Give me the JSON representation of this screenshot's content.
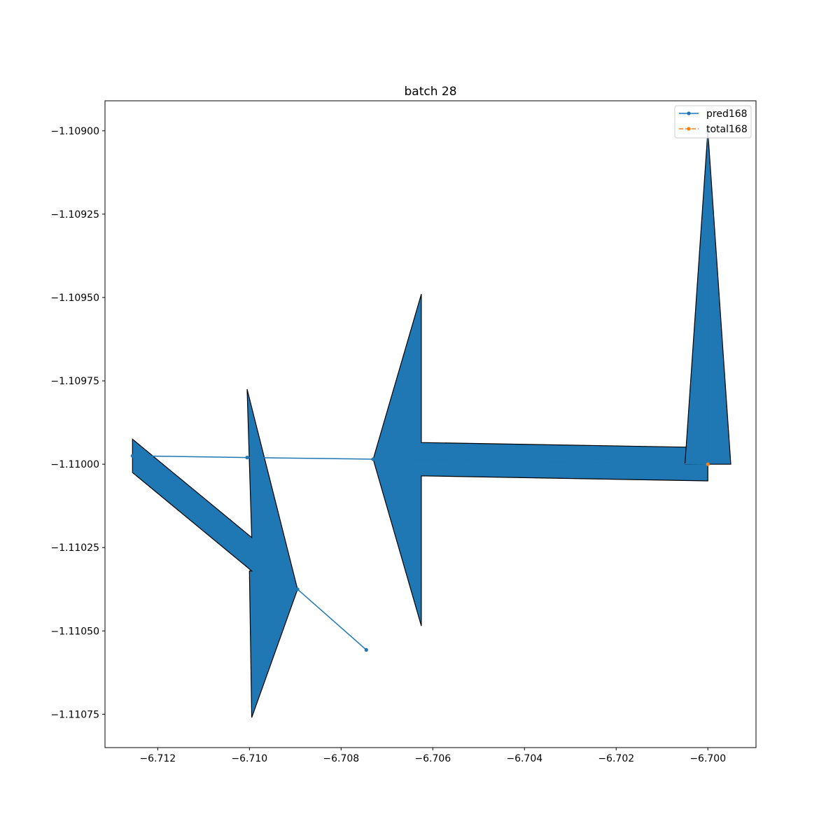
{
  "chart_data": {
    "type": "line",
    "title": "batch 28",
    "xlabel": "",
    "ylabel": "",
    "xlim": [
      -6.71315,
      -6.69895
    ],
    "ylim": [
      -1.11085,
      -1.10891
    ],
    "x_ticks": [
      {
        "value": -6.712,
        "label": "−6.712"
      },
      {
        "value": -6.71,
        "label": "−6.710"
      },
      {
        "value": -6.708,
        "label": "−6.708"
      },
      {
        "value": -6.706,
        "label": "−6.706"
      },
      {
        "value": -6.704,
        "label": "−6.704"
      },
      {
        "value": -6.702,
        "label": "−6.702"
      },
      {
        "value": -6.7,
        "label": "−6.700"
      }
    ],
    "y_ticks": [
      {
        "value": -1.109,
        "label": "−1.10900"
      },
      {
        "value": -1.10925,
        "label": "−1.10925"
      },
      {
        "value": -1.1095,
        "label": "−1.10950"
      },
      {
        "value": -1.10975,
        "label": "−1.10975"
      },
      {
        "value": -1.11,
        "label": "−1.11000"
      },
      {
        "value": -1.11025,
        "label": "−1.11025"
      },
      {
        "value": -1.1105,
        "label": "−1.11050"
      },
      {
        "value": -1.11075,
        "label": "−1.11075"
      }
    ],
    "grid": false,
    "legend_position": "top-right",
    "series": [
      {
        "name": "pred168",
        "color": "#1f77b4",
        "style": "solid",
        "marker": "dot",
        "x": [
          -6.70745,
          -6.70895,
          -6.71255,
          -6.71005,
          -6.7073,
          -6.7,
          -6.7
        ],
        "y": [
          -1.110557,
          -1.110375,
          -1.109975,
          -1.10998,
          -1.109985,
          -1.11,
          -1.109
        ]
      },
      {
        "name": "total168",
        "color": "#ff7f0e",
        "style": "dashed",
        "marker": "dot",
        "x": [
          -6.7
        ],
        "y": [
          -1.11
        ]
      }
    ],
    "arrows": [
      {
        "x": [
          -6.71255,
          -6.71255,
          -6.70995,
          -6.71005,
          -6.70895,
          -6.70995,
          -6.71,
          -6.70995
        ],
        "y": [
          -1.110025,
          -1.109925,
          -1.11022,
          -1.109775,
          -1.110375,
          -1.11076,
          -1.11032,
          -1.11032
        ],
        "fill": "#1f77b4",
        "edge": "#000000"
      },
      {
        "x": [
          -6.7073,
          -6.70625,
          -6.70625,
          -6.7,
          -6.7,
          -6.70625,
          -6.70625
        ],
        "y": [
          -1.109985,
          -1.10949,
          -1.109935,
          -1.10995,
          -1.11005,
          -1.110035,
          -1.110485
        ],
        "fill": "#1f77b4",
        "edge": "#000000"
      },
      {
        "x": [
          -6.7005,
          -6.7,
          -6.6995
        ],
        "y": [
          -1.11,
          -1.109,
          -1.11
        ],
        "fill": "#1f77b4",
        "edge": "#000000"
      }
    ]
  }
}
